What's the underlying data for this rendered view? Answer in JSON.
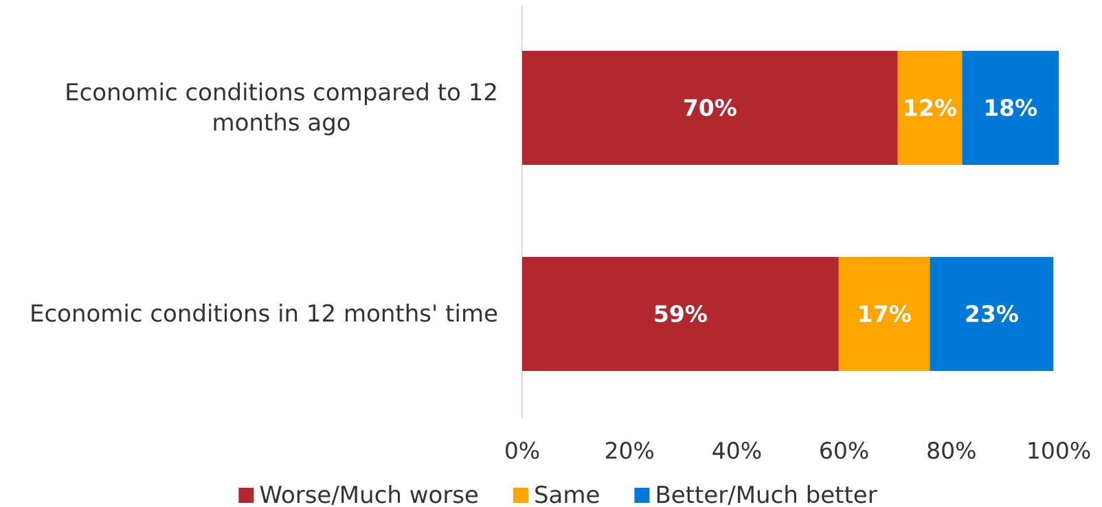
{
  "chart_data": {
    "type": "bar",
    "orientation": "horizontal",
    "stacked": true,
    "categories": [
      "Economic conditions compared to 12 months ago",
      "Economic conditions in 12 months' time"
    ],
    "category_label_lines": [
      [
        "Economic conditions compared to 12",
        "months ago"
      ],
      [
        "Economic conditions in 12 months' time"
      ]
    ],
    "series": [
      {
        "name": "Worse/Much worse",
        "values": [
          70,
          59
        ],
        "labels": [
          "70%",
          "59%"
        ],
        "color": "#B3272F"
      },
      {
        "name": "Same",
        "values": [
          12,
          17
        ],
        "labels": [
          "12%",
          "17%"
        ],
        "color": "#FFA500"
      },
      {
        "name": "Better/Much better",
        "values": [
          18,
          23
        ],
        "labels": [
          "18%",
          "23%"
        ],
        "color": "#0078D7"
      }
    ],
    "xlim": [
      0,
      100
    ],
    "x_ticks": [
      0,
      20,
      40,
      60,
      80,
      100
    ],
    "x_tick_labels": [
      "0%",
      "20%",
      "40%",
      "60%",
      "80%",
      "100%"
    ],
    "xlabel": "",
    "ylabel": "",
    "title": "",
    "grid": false,
    "legend_position": "bottom",
    "axis_color": "#D9D9D9",
    "data_label_color": "#FFFFFF",
    "text_color": "#333333"
  }
}
